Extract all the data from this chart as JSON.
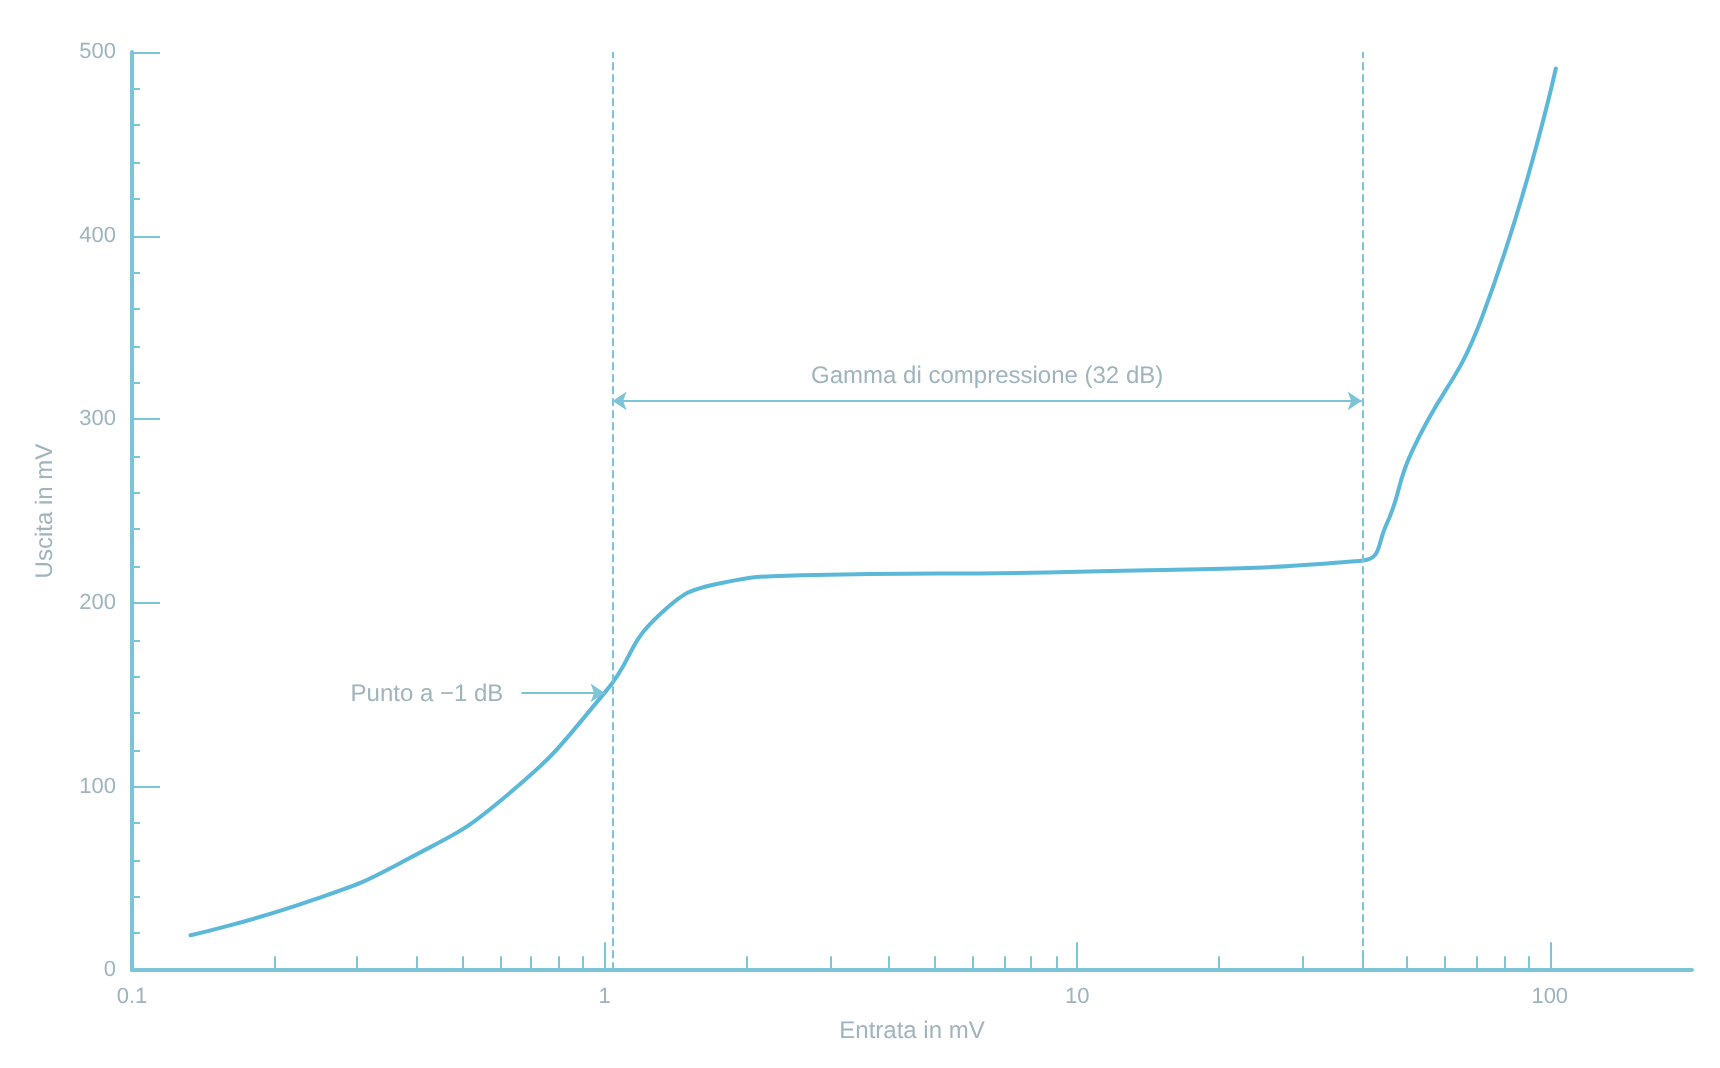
{
  "chart_data": {
    "type": "line",
    "xlabel": "Entrata in mV",
    "ylabel": "Uscita in mV",
    "log": "x",
    "xlim": [
      0.1,
      200
    ],
    "xticks": [
      0.1,
      1,
      10,
      100
    ],
    "ylim": [
      0,
      500
    ],
    "yticks": [
      0,
      100,
      200,
      300,
      400,
      500
    ],
    "grid": false,
    "marker": "none",
    "line_style": "solid",
    "series": [
      {
        "color": "#5bb8d8",
        "x": [
          0.133,
          0.24,
          0.38,
          0.62,
          1.0,
          1.3,
          1.78,
          2.6,
          10,
          40,
          45,
          51,
          72,
          103
        ],
        "values": [
          19,
          38,
          60,
          95,
          151,
          193,
          211,
          215,
          217,
          223,
          242,
          282,
          356,
          491
        ]
      }
    ],
    "ref_lines": [
      {
        "axis": "x",
        "value": 1.04,
        "line_style": "dashed",
        "color": "#7cc4d8"
      },
      {
        "axis": "x",
        "value": 40,
        "line_style": "dashed",
        "color": "#7cc4d8"
      }
    ],
    "annotations": [
      "Gamma di compressione (32 dB)",
      {
        "text": "Punto a −1 dB",
        "x": 1.0,
        "y": 151
      }
    ]
  }
}
